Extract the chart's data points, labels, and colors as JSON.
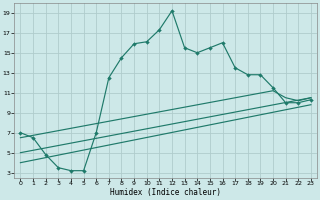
{
  "xlabel": "Humidex (Indice chaleur)",
  "xlim": [
    -0.5,
    23.5
  ],
  "ylim": [
    2.5,
    20.0
  ],
  "xticks": [
    0,
    1,
    2,
    3,
    4,
    5,
    6,
    7,
    8,
    9,
    10,
    11,
    12,
    13,
    14,
    15,
    16,
    17,
    18,
    19,
    20,
    21,
    22,
    23
  ],
  "yticks": [
    3,
    5,
    7,
    9,
    11,
    13,
    15,
    17,
    19
  ],
  "bg_color": "#cde8e8",
  "grid_color": "#b0cccc",
  "line_color": "#1f7a6a",
  "line1_x": [
    0,
    1,
    2,
    3,
    4,
    5,
    6,
    7,
    8,
    9,
    10,
    11,
    12,
    13,
    14,
    15,
    16,
    17,
    18,
    19,
    20,
    21,
    22,
    23
  ],
  "line1_y": [
    7.0,
    6.5,
    4.8,
    3.5,
    3.2,
    3.2,
    7.0,
    12.5,
    14.5,
    15.9,
    16.1,
    17.3,
    19.2,
    15.5,
    15.0,
    15.5,
    16.0,
    13.5,
    12.8,
    12.8,
    11.5,
    10.0,
    10.0,
    10.3
  ],
  "line2_x": [
    0,
    23
  ],
  "line2_y": [
    4.0,
    9.8
  ],
  "line3_x": [
    0,
    23
  ],
  "line3_y": [
    5.0,
    10.5
  ],
  "line4_x": [
    0,
    20,
    21,
    22,
    23
  ],
  "line4_y": [
    6.5,
    11.2,
    10.5,
    10.2,
    10.5
  ]
}
